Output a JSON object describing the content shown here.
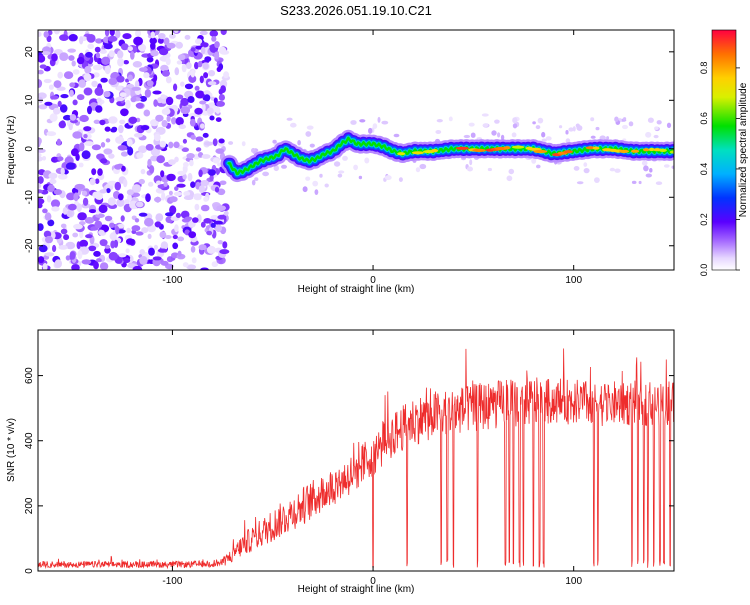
{
  "chart_data": [
    {
      "type": "heatmap",
      "title": "S233.2026.051.19.10.C21",
      "xlabel": "Height of straight line (km)",
      "ylabel": "Frequency (Hz)",
      "xlim": [
        -167,
        150
      ],
      "ylim": [
        -25,
        24.5
      ],
      "xticks": [
        -100,
        0,
        100
      ],
      "yticks": [
        -20,
        -10,
        0,
        10,
        20
      ],
      "colorbar": {
        "label": "Normalized spectral amplitude",
        "range": [
          0,
          0.95
        ],
        "ticks": [
          0.0,
          0.2,
          0.4,
          0.6,
          0.8
        ],
        "tick_labels": [
          "0.0",
          "0.2",
          "0.4",
          "0.6",
          "0.8"
        ]
      },
      "noise_region_x": [
        -167,
        -73
      ],
      "ridge": {
        "x": [
          -72,
          -68,
          -64,
          -60,
          -56,
          -52,
          -48,
          -44,
          -40,
          -36,
          -32,
          -28,
          -24,
          -20,
          -16,
          -12,
          -8,
          -4,
          0,
          5,
          10,
          15,
          20,
          30,
          40,
          50,
          60,
          70,
          80,
          90,
          100,
          110,
          120,
          130,
          140,
          150
        ],
        "freq": [
          -3,
          -5,
          -4.5,
          -3.5,
          -2.5,
          -2,
          -1.5,
          0,
          -1,
          -2,
          -2.5,
          -2,
          -1,
          -0.5,
          1,
          2,
          1,
          1,
          1,
          0.5,
          -0.5,
          -1,
          -0.5,
          -0.5,
          0,
          0,
          0,
          0,
          0,
          -1,
          -0.5,
          0,
          0,
          -0.5,
          -0.5,
          -0.5
        ],
        "amp": [
          0.3,
          0.35,
          0.4,
          0.45,
          0.45,
          0.5,
          0.5,
          0.5,
          0.55,
          0.6,
          0.6,
          0.55,
          0.5,
          0.55,
          0.6,
          0.5,
          0.55,
          0.5,
          0.55,
          0.6,
          0.6,
          0.65,
          0.6,
          0.7,
          0.85,
          0.8,
          0.9,
          0.7,
          0.75,
          0.85,
          0.8,
          0.75,
          0.8,
          0.7,
          0.7,
          0.65
        ]
      }
    },
    {
      "type": "line",
      "title": "",
      "xlabel": "Height of straight line (km)",
      "ylabel": "SNR (10 * v/v)",
      "xlim": [
        -167,
        150
      ],
      "ylim": [
        0,
        740
      ],
      "xticks": [
        -100,
        0,
        100
      ],
      "yticks": [
        0,
        200,
        400,
        600
      ],
      "series": [
        {
          "name": "SNR",
          "color": "#ee2c2c",
          "x": [
            -167,
            -150,
            -130,
            -110,
            -90,
            -75,
            -70,
            -65,
            -60,
            -55,
            -50,
            -45,
            -40,
            -35,
            -30,
            -25,
            -20,
            -15,
            -10,
            -5,
            0,
            5,
            10,
            15,
            20,
            25,
            30,
            40,
            50,
            60,
            70,
            80,
            90,
            100,
            110,
            120,
            130,
            140,
            150
          ],
          "mean": [
            20,
            20,
            20,
            20,
            20,
            25,
            50,
            80,
            100,
            120,
            140,
            160,
            180,
            200,
            220,
            240,
            260,
            280,
            300,
            330,
            360,
            390,
            420,
            440,
            460,
            470,
            480,
            490,
            500,
            510,
            515,
            520,
            520,
            520,
            515,
            515,
            515,
            515,
            515
          ],
          "spread": [
            10,
            10,
            10,
            10,
            10,
            12,
            25,
            35,
            40,
            45,
            50,
            55,
            55,
            60,
            60,
            60,
            60,
            60,
            65,
            65,
            70,
            70,
            70,
            70,
            75,
            75,
            75,
            75,
            75,
            75,
            75,
            75,
            70,
            70,
            70,
            70,
            70,
            70,
            70
          ],
          "dropouts": [
            0,
            17,
            34,
            37,
            40,
            52,
            66,
            68,
            70,
            73,
            75,
            80,
            83,
            85,
            110,
            112,
            129,
            132,
            135,
            137,
            140,
            143,
            145,
            148
          ]
        }
      ]
    }
  ]
}
